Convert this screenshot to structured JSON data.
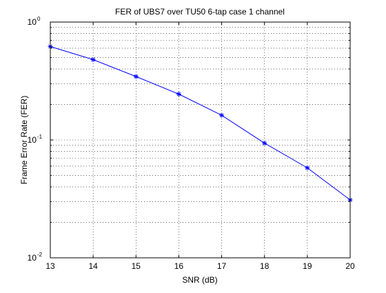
{
  "chart_data": {
    "type": "line",
    "title": "FER of UBS7 over TU50 6-tap case 1 channel",
    "xlabel": "SNR (dB)",
    "ylabel": "Frame Error Rate (FER)",
    "xlim": [
      13,
      20
    ],
    "ylim": [
      0.01,
      1
    ],
    "yscale": "log",
    "grid": "on (dotted, major and minor on y)",
    "legend": "none",
    "x_ticks": [
      "13",
      "14",
      "15",
      "16",
      "17",
      "18",
      "19",
      "20"
    ],
    "y_ticks": [
      {
        "base": "10",
        "exp": "-2"
      },
      {
        "base": "10",
        "exp": "-1"
      },
      {
        "base": "10",
        "exp": "0"
      }
    ],
    "series": [
      {
        "color": "#0000ff",
        "marker": "asterisk",
        "x": [
          13,
          14,
          15,
          16,
          17,
          18,
          19,
          20
        ],
        "values": [
          0.62,
          0.48,
          0.345,
          0.245,
          0.162,
          0.094,
          0.058,
          0.031
        ]
      }
    ]
  }
}
